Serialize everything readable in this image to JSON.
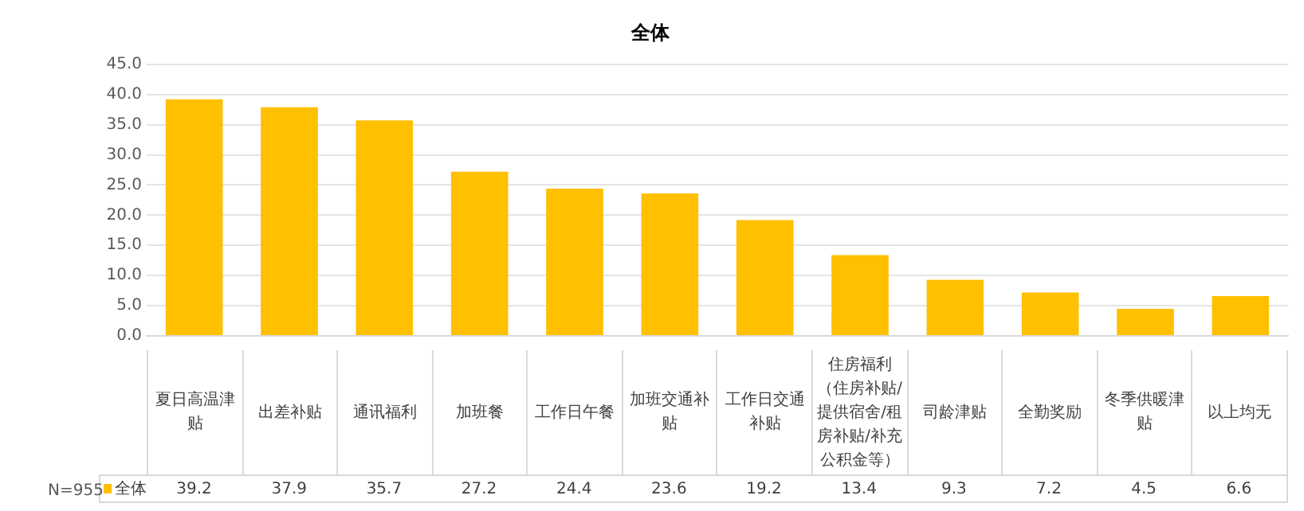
{
  "chart_data": {
    "type": "bar",
    "title": "全体",
    "categories": [
      "夏日高温津贴",
      "出差补贴",
      "通讯福利",
      "加班餐",
      "工作日午餐",
      "加班交通补贴",
      "工作日交通补贴",
      "住房福利（住房补贴/提供宿舍/租房补贴/补充公积金等）",
      "司龄津贴",
      "全勤奖励",
      "冬季供暖津贴",
      "以上均无"
    ],
    "series": [
      {
        "name": "全体",
        "color": "#ffc000",
        "values": [
          39.2,
          37.9,
          35.7,
          27.2,
          24.4,
          23.6,
          19.2,
          13.4,
          9.3,
          7.2,
          4.5,
          6.6
        ]
      }
    ],
    "ylim": [
      0,
      45
    ],
    "yticks": [
      {
        "value": 0,
        "label": "0.0"
      },
      {
        "value": 5,
        "label": "5.0"
      },
      {
        "value": 10,
        "label": "10.0"
      },
      {
        "value": 15,
        "label": "15.0"
      },
      {
        "value": 20,
        "label": "20.0"
      },
      {
        "value": 25,
        "label": "25.0"
      },
      {
        "value": 30,
        "label": "30.0"
      },
      {
        "value": 35,
        "label": "35.0"
      },
      {
        "value": 40,
        "label": "40.0"
      },
      {
        "value": 45,
        "label": "45.0"
      }
    ],
    "grid": "y",
    "legend": "bottom left",
    "data_labels": true,
    "annotations": [
      "N=955"
    ]
  }
}
